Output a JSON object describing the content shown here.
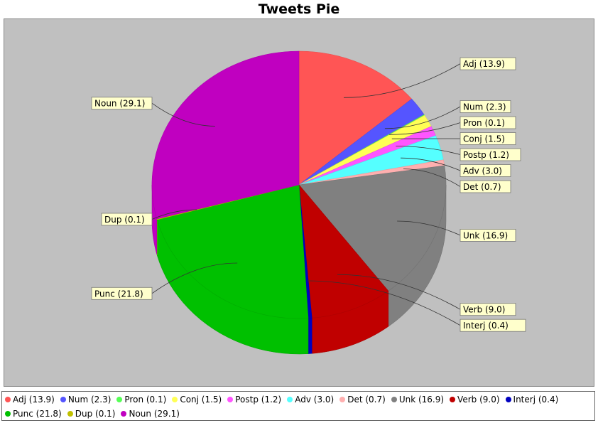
{
  "title": "Tweets Pie",
  "chart_data": {
    "type": "pie",
    "title": "Tweets Pie",
    "slices": [
      {
        "name": "Adj",
        "value": 13.9,
        "label": "Adj (13.9)",
        "color": "#ff5555"
      },
      {
        "name": "Num",
        "value": 2.3,
        "label": "Num (2.3)",
        "color": "#5555ff"
      },
      {
        "name": "Pron",
        "value": 0.1,
        "label": "Pron (0.1)",
        "color": "#55ff55"
      },
      {
        "name": "Conj",
        "value": 1.5,
        "label": "Conj (1.5)",
        "color": "#ffff55"
      },
      {
        "name": "Postp",
        "value": 1.2,
        "label": "Postp (1.2)",
        "color": "#ff55ff"
      },
      {
        "name": "Adv",
        "value": 3.0,
        "label": "Adv (3.0)",
        "color": "#55ffff"
      },
      {
        "name": "Det",
        "value": 0.7,
        "label": "Det (0.7)",
        "color": "#ffafaf"
      },
      {
        "name": "Unk",
        "value": 16.9,
        "label": "Unk (16.9)",
        "color": "#808080"
      },
      {
        "name": "Verb",
        "value": 9.0,
        "label": "Verb (9.0)",
        "color": "#c00000"
      },
      {
        "name": "Interj",
        "value": 0.4,
        "label": "Interj (0.4)",
        "color": "#0000c0"
      },
      {
        "name": "Punc",
        "value": 21.8,
        "label": "Punc (21.8)",
        "color": "#00c000"
      },
      {
        "name": "Dup",
        "value": 0.1,
        "label": "Dup (0.1)",
        "color": "#c0c000"
      },
      {
        "name": "Noun",
        "value": 29.1,
        "label": "Noun (29.1)",
        "color": "#c000c0"
      }
    ],
    "start_angle_deg": 90,
    "direction": "clockwise",
    "render": "3d",
    "legend_position": "bottom"
  },
  "legend": {
    "rows": [
      [
        "Adj (13.9)",
        "Num (2.3)",
        "Pron (0.1)",
        "Conj (1.5)",
        "Postp (1.2)",
        "Adv (3.0)",
        "Det (0.7)",
        "Unk (16.9)",
        "Verb (9.0)",
        "Interj (0.4)"
      ],
      [
        "Punc (21.8)",
        "Dup (0.1)",
        "Noun (29.1)"
      ]
    ]
  }
}
